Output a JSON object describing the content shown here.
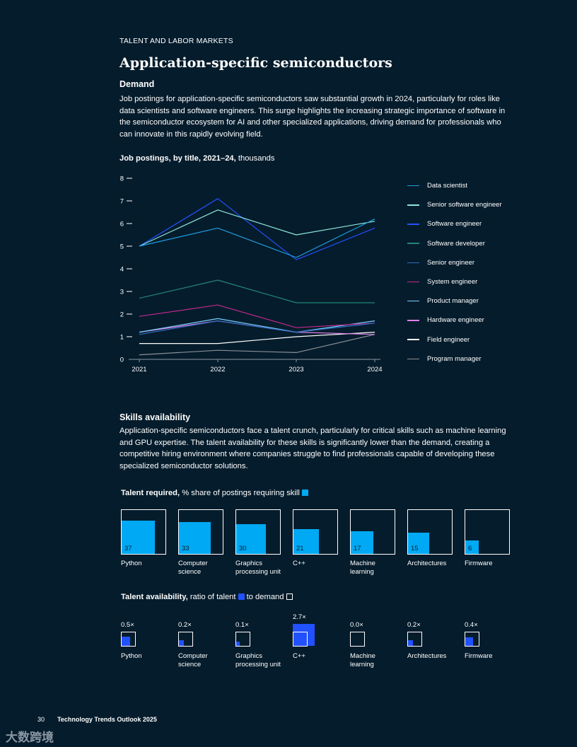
{
  "header": {
    "section_label": "TALENT AND LABOR MARKETS",
    "title": "Application-specific semiconductors"
  },
  "demand": {
    "heading": "Demand",
    "text": "Job postings for application-specific semiconductors saw substantial growth in 2024, particularly for roles like data scientists and software engineers. This surge highlights the increasing strategic importance of software in the semiconductor ecosystem for AI and other specialized applications, driving demand for professionals who can innovate in this rapidly evolving field."
  },
  "job_chart": {
    "title_bold": "Job postings, by title, 2021–24,",
    "title_rest": " thousands"
  },
  "skills": {
    "heading": "Skills availability",
    "text": "Application-specific semiconductors face a talent crunch, particularly for critical skills such as machine learning and GPU expertise. The talent availability for these skills is significantly lower than the demand, creating a competitive hiring environment where companies struggle to find professionals capable of developing these specialized semiconductor solutions."
  },
  "talent_required": {
    "title_bold": "Talent required,",
    "title_rest": " % share of postings requiring skill",
    "color": "#00a9f4"
  },
  "talent_availability": {
    "title_bold": "Talent availability,",
    "title_mid": " ratio of talent",
    "title_end": " to demand",
    "color": "#2251ff"
  },
  "chart_data": [
    {
      "type": "line",
      "title": "Job postings, by title, 2021–24, thousands",
      "x": [
        "2021",
        "2022",
        "2023",
        "2024"
      ],
      "ylim": [
        0,
        8
      ],
      "yticks": [
        "0",
        "1",
        "2",
        "3",
        "4",
        "5",
        "6",
        "7",
        "8"
      ],
      "xlabel": "",
      "ylabel": "",
      "legend_position": "right",
      "series": [
        {
          "name": "Data scientist",
          "color": "#1f9fe0",
          "values": [
            5.0,
            5.8,
            4.5,
            6.2
          ]
        },
        {
          "name": "Senior software engineer",
          "color": "#8ce6dc",
          "values": [
            5.0,
            6.6,
            5.5,
            6.1
          ]
        },
        {
          "name": "Software engineer",
          "color": "#2251ff",
          "values": [
            5.0,
            7.1,
            4.4,
            5.8
          ]
        },
        {
          "name": "Software developer",
          "color": "#22857a",
          "values": [
            2.7,
            3.5,
            2.5,
            2.5
          ]
        },
        {
          "name": "Senior engineer",
          "color": "#2f6fc0",
          "values": [
            1.1,
            1.7,
            1.2,
            1.6
          ]
        },
        {
          "name": "System engineer",
          "color": "#c0288c",
          "values": [
            1.9,
            2.4,
            1.4,
            1.6
          ]
        },
        {
          "name": "Product manager",
          "color": "#7ad0ff",
          "values": [
            1.2,
            1.8,
            1.2,
            1.7
          ]
        },
        {
          "name": "Hardware engineer",
          "color": "#e27fe9",
          "values": [
            1.2,
            1.7,
            1.2,
            1.1
          ]
        },
        {
          "name": "Field engineer",
          "color": "#ffffff",
          "values": [
            0.7,
            0.7,
            1.0,
            1.2
          ]
        },
        {
          "name": "Program manager",
          "color": "#8a8f94",
          "values": [
            0.2,
            0.4,
            0.3,
            1.1
          ]
        }
      ]
    },
    {
      "type": "bar",
      "title": "Talent required, % share of postings requiring skill",
      "categories": [
        "Python",
        "Computer science",
        "Graphics processing unit",
        "C++",
        "Machine learning",
        "Architectures",
        "Firmware"
      ],
      "values": [
        37,
        33,
        30,
        21,
        17,
        15,
        6
      ],
      "value_labels": [
        "37",
        "33",
        "30",
        "21",
        "17",
        "15",
        "6"
      ],
      "label_lines": [
        [
          "Python"
        ],
        [
          "Computer",
          "science"
        ],
        [
          "Graphics",
          "processing unit"
        ],
        [
          "C++"
        ],
        [
          "Machine",
          "learning"
        ],
        [
          "Architectures"
        ],
        [
          "Firmware"
        ]
      ],
      "ylim": [
        0,
        64
      ]
    },
    {
      "type": "bar",
      "title": "Talent availability, ratio of talent to demand",
      "categories": [
        "Python",
        "Computer science",
        "Graphics processing unit",
        "C++",
        "Machine learning",
        "Architectures",
        "Firmware"
      ],
      "values": [
        0.5,
        0.2,
        0.1,
        2.7,
        0.0,
        0.2,
        0.4
      ],
      "value_labels": [
        "0.5×",
        "0.2×",
        "0.1×",
        "2.7×",
        "0.0×",
        "0.2×",
        "0.4×"
      ],
      "label_lines": [
        [
          "Python"
        ],
        [
          "Computer",
          "science"
        ],
        [
          "Graphics",
          "processing unit"
        ],
        [
          "C++"
        ],
        [
          "Machine",
          "learning"
        ],
        [
          "Architectures"
        ],
        [
          "Firmware"
        ]
      ]
    }
  ],
  "footer": {
    "page_number": "30",
    "publication": "Technology Trends Outlook 2025"
  },
  "watermark": {
    "text": "大数跨境"
  }
}
